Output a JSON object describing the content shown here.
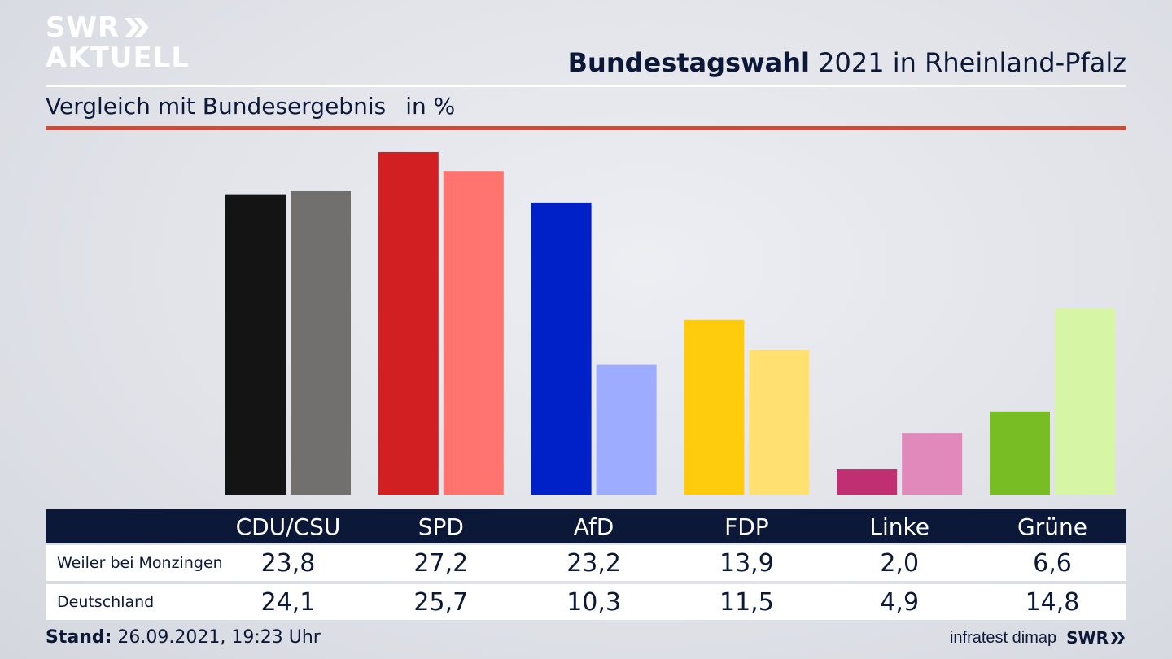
{
  "brand": {
    "line1": "SWR",
    "line2": "AKTUELL",
    "footer_logo": "SWR"
  },
  "header": {
    "title_bold": "Bundestagswahl",
    "title_rest": "2021 in Rheinland-Pfalz",
    "subtitle": "Vergleich mit Bundesergebnis",
    "unit": "in %"
  },
  "chart_data": {
    "type": "bar",
    "categories": [
      "CDU/CSU",
      "SPD",
      "AfD",
      "FDP",
      "Linke",
      "Grüne"
    ],
    "series": [
      {
        "name": "Weiler bei Monzingen",
        "values": [
          23.8,
          27.2,
          23.2,
          13.9,
          2.0,
          6.6
        ],
        "labels": [
          "23,8",
          "27,2",
          "23,2",
          "13,9",
          "2,0",
          "6,6"
        ],
        "colors": [
          "#141414",
          "#d21f22",
          "#0020c8",
          "#ffcc0d",
          "#bf2f72",
          "#78bd23"
        ]
      },
      {
        "name": "Deutschland",
        "values": [
          24.1,
          25.7,
          10.3,
          11.5,
          4.9,
          14.8
        ],
        "labels": [
          "24,1",
          "25,7",
          "10,3",
          "11,5",
          "4,9",
          "14,8"
        ],
        "colors": [
          "#72706e",
          "#ff746e",
          "#9dacff",
          "#ffe071",
          "#e089ba",
          "#d6f6a6"
        ]
      }
    ],
    "ylim": [
      0,
      27.2
    ],
    "grid": false,
    "legend": "table-below"
  },
  "footer": {
    "stand_label": "Stand:",
    "stand_value": "26.09.2021, 19:23 Uhr",
    "source": "infratest dimap"
  }
}
